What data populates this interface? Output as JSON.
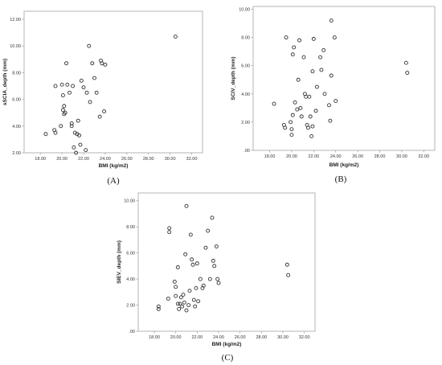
{
  "chart_data": [
    {
      "type": "scatter",
      "panel": "(A)",
      "xlabel": "BMI (kg/m2)",
      "ylabel": "sSCIA_depth (mm)",
      "xlim": [
        16.5,
        33
      ],
      "ylim": [
        2,
        12.6
      ],
      "xticks": [
        "18.00",
        "20.00",
        "22.00",
        "24.00",
        "26.00",
        "28.00",
        "30.00",
        "32.00"
      ],
      "yticks": [
        "2.00",
        "4.00",
        "6.00",
        "8.00",
        "10.00",
        "12.00"
      ],
      "grid": false,
      "x": [
        18.5,
        19.3,
        19.4,
        19.4,
        19.9,
        20.0,
        20.1,
        20.1,
        20.2,
        20.2,
        20.3,
        20.4,
        20.5,
        20.7,
        20.9,
        20.9,
        21.0,
        21.1,
        21.2,
        21.3,
        21.4,
        21.5,
        21.6,
        21.7,
        21.8,
        22.0,
        22.2,
        22.3,
        22.5,
        22.6,
        22.8,
        23.0,
        23.2,
        23.5,
        23.6,
        23.7,
        23.9,
        24.0,
        30.5
      ],
      "y": [
        3.4,
        3.7,
        3.5,
        7.0,
        4.0,
        7.1,
        5.2,
        6.3,
        5.5,
        4.9,
        5.0,
        8.7,
        7.1,
        6.5,
        4.0,
        4.2,
        7.0,
        2.4,
        3.5,
        2.0,
        3.4,
        4.4,
        3.3,
        2.6,
        7.4,
        6.9,
        2.2,
        6.5,
        10.0,
        5.8,
        8.7,
        7.6,
        6.5,
        4.7,
        8.9,
        8.7,
        5.1,
        8.6,
        10.7
      ]
    },
    {
      "type": "scatter",
      "panel": "(B)",
      "xlabel": "BMI (kg/m2)",
      "ylabel": "SCIV_depth (mm)",
      "xlim": [
        16.5,
        33
      ],
      "ylim": [
        0,
        10.2
      ],
      "xticks": [
        "18.00",
        "20.00",
        "22.00",
        "24.00",
        "26.00",
        "28.00",
        "30.00",
        "32.00"
      ],
      "yticks": [
        ".00",
        "2.00",
        "4.00",
        "6.00",
        "8.00",
        "10.00"
      ],
      "grid": false,
      "x": [
        18.4,
        19.3,
        19.4,
        19.5,
        19.9,
        20.0,
        20.0,
        20.1,
        20.1,
        20.2,
        20.3,
        20.5,
        20.6,
        20.7,
        20.8,
        20.9,
        21.1,
        21.2,
        21.3,
        21.4,
        21.5,
        21.6,
        21.7,
        21.8,
        21.9,
        21.9,
        22.0,
        22.2,
        22.3,
        22.6,
        22.7,
        22.9,
        23.0,
        23.4,
        23.5,
        23.6,
        23.6,
        23.9,
        24.0,
        30.4,
        30.5
      ],
      "y": [
        3.3,
        1.8,
        1.6,
        8.0,
        2.0,
        1.5,
        1.1,
        6.8,
        2.5,
        7.3,
        3.4,
        2.9,
        5.0,
        7.8,
        3.0,
        2.4,
        6.6,
        4.0,
        3.8,
        1.8,
        1.6,
        3.8,
        2.4,
        1.0,
        1.7,
        5.6,
        7.9,
        2.8,
        4.5,
        6.6,
        5.7,
        7.1,
        4.0,
        3.2,
        2.1,
        5.3,
        9.2,
        8.0,
        3.5,
        6.2,
        5.5
      ]
    },
    {
      "type": "scatter",
      "panel": "(C)",
      "xlabel": "BMI (kg/m2)",
      "ylabel": "SIEV_depth (mm)",
      "xlim": [
        16.5,
        33
      ],
      "ylim": [
        0,
        10.6
      ],
      "xticks": [
        "18.00",
        "20.00",
        "22.00",
        "24.00",
        "26.00",
        "28.00",
        "30.00",
        "32.00"
      ],
      "yticks": [
        ".00",
        "2.00",
        "4.00",
        "6.00",
        "8.00",
        "10.00"
      ],
      "grid": false,
      "x": [
        18.4,
        18.4,
        19.3,
        19.4,
        19.4,
        19.9,
        20.0,
        20.0,
        20.2,
        20.2,
        20.3,
        20.4,
        20.5,
        20.6,
        20.7,
        20.8,
        20.9,
        21.0,
        21.0,
        21.2,
        21.3,
        21.4,
        21.5,
        21.6,
        21.7,
        21.8,
        21.9,
        22.0,
        22.1,
        22.3,
        22.5,
        22.6,
        22.8,
        23.0,
        23.2,
        23.4,
        23.5,
        23.6,
        23.8,
        23.9,
        24.0,
        30.4,
        30.5
      ],
      "y": [
        1.7,
        1.9,
        2.5,
        7.6,
        7.9,
        3.8,
        2.7,
        3.4,
        4.9,
        2.1,
        1.7,
        2.1,
        2.6,
        1.9,
        2.8,
        2.2,
        5.9,
        1.6,
        9.6,
        2.0,
        3.1,
        7.4,
        5.5,
        5.1,
        2.4,
        1.9,
        3.3,
        5.2,
        2.3,
        4.0,
        3.3,
        3.5,
        6.4,
        7.7,
        4.0,
        8.7,
        5.4,
        5.0,
        6.5,
        4.0,
        3.7,
        5.1,
        4.3
      ]
    }
  ]
}
